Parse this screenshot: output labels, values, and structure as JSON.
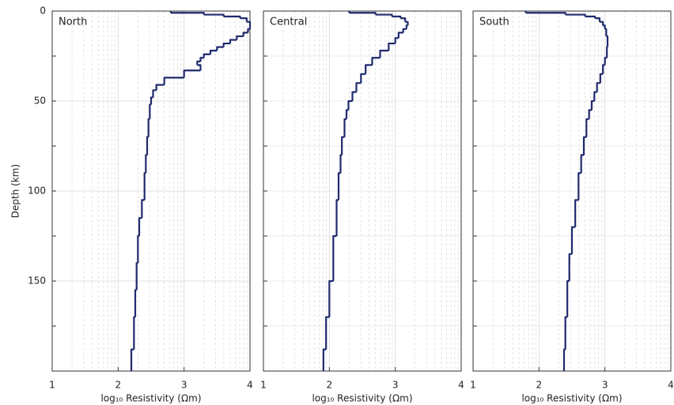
{
  "chart_data": [
    {
      "type": "step",
      "title": "North",
      "xlabel": "log₁₀ Resistivity (Ωm)",
      "ylabel": "Depth (km)",
      "xlim": [
        1,
        4
      ],
      "xticks": [
        1,
        2,
        3,
        4
      ],
      "ylim": [
        0,
        200
      ],
      "yticks": [
        0,
        50,
        100,
        150
      ],
      "yminorticks": [
        25,
        75,
        125,
        175
      ],
      "y_inverted": true,
      "grid": true,
      "log_minor_grid": true,
      "color": "#1f2a6e",
      "depth": [
        0,
        1,
        2,
        3,
        4,
        6,
        8,
        10,
        12,
        14,
        16,
        18,
        20,
        22,
        24,
        26,
        28,
        30,
        33,
        37,
        41,
        44,
        48,
        52,
        60,
        70,
        80,
        90,
        105,
        115,
        125,
        140,
        155,
        170,
        188
      ],
      "values": [
        2.8,
        3.3,
        3.6,
        3.85,
        3.95,
        4.0,
        4.0,
        3.97,
        3.9,
        3.8,
        3.7,
        3.6,
        3.5,
        3.4,
        3.3,
        3.25,
        3.2,
        3.25,
        3.0,
        2.7,
        2.58,
        2.53,
        2.5,
        2.48,
        2.46,
        2.44,
        2.42,
        2.4,
        2.36,
        2.32,
        2.3,
        2.28,
        2.26,
        2.24,
        2.2
      ]
    },
    {
      "type": "step",
      "title": "Central",
      "xlabel": "log₁₀ Resistivity (Ωm)",
      "xlim": [
        1,
        4
      ],
      "xticks": [
        1,
        2,
        3,
        4
      ],
      "ylim": [
        0,
        200
      ],
      "yminorticks": [
        25,
        50,
        75,
        100,
        125,
        150,
        175
      ],
      "y_inverted": true,
      "grid": true,
      "log_minor_grid": true,
      "color": "#1f2a6e",
      "depth": [
        0,
        1,
        2,
        3,
        4,
        6,
        8,
        10,
        12,
        15,
        18,
        22,
        26,
        30,
        35,
        40,
        45,
        50,
        55,
        60,
        70,
        80,
        90,
        105,
        125,
        150,
        170,
        188
      ],
      "values": [
        2.3,
        2.7,
        2.95,
        3.08,
        3.15,
        3.19,
        3.17,
        3.12,
        3.05,
        3.0,
        2.9,
        2.77,
        2.65,
        2.55,
        2.48,
        2.41,
        2.35,
        2.29,
        2.26,
        2.23,
        2.19,
        2.17,
        2.14,
        2.11,
        2.06,
        2.0,
        1.95,
        1.91
      ]
    },
    {
      "type": "step",
      "title": "South",
      "xlabel": "log₁₀ Resistivity (Ωm)",
      "xlim": [
        1,
        4
      ],
      "xticks": [
        1,
        2,
        3,
        4
      ],
      "ylim": [
        0,
        200
      ],
      "yminorticks": [
        25,
        50,
        75,
        100,
        125,
        150,
        175
      ],
      "y_inverted": true,
      "grid": true,
      "log_minor_grid": true,
      "color": "#1f2a6e",
      "depth": [
        0,
        1,
        2,
        3,
        4,
        6,
        8,
        10,
        14,
        20,
        26,
        30,
        35,
        40,
        45,
        50,
        55,
        60,
        70,
        80,
        90,
        105,
        120,
        135,
        150,
        170,
        188
      ],
      "values": [
        1.8,
        2.4,
        2.7,
        2.85,
        2.92,
        2.97,
        3.0,
        3.02,
        3.04,
        3.03,
        3.0,
        2.97,
        2.93,
        2.88,
        2.84,
        2.8,
        2.76,
        2.72,
        2.68,
        2.64,
        2.6,
        2.55,
        2.5,
        2.46,
        2.43,
        2.4,
        2.38
      ]
    }
  ]
}
